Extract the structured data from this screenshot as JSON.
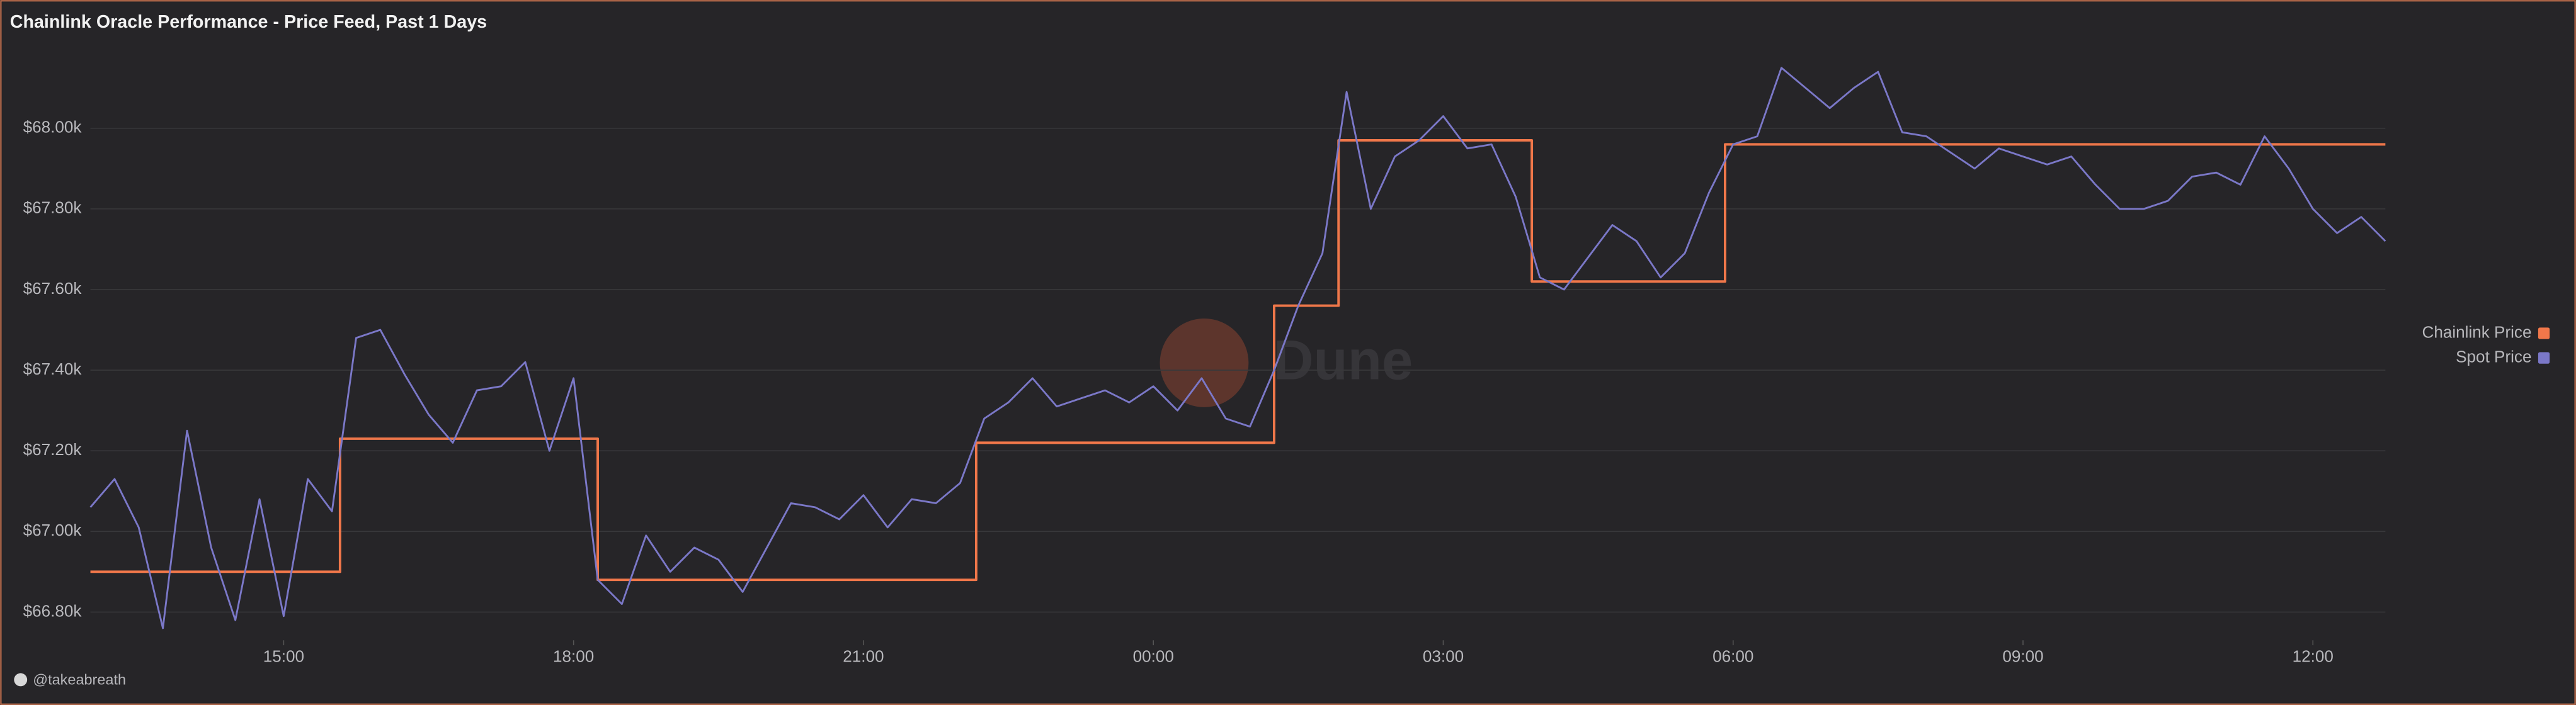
{
  "chart_data": {
    "type": "line",
    "title": "Chainlink Oracle Performance - Price Feed, Past 1 Days",
    "watermark": "Dune",
    "credit": "@takeabreath",
    "xlim": [
      "13:00",
      "12:45"
    ],
    "xticks": [
      "15:00",
      "18:00",
      "21:00",
      "00:00",
      "03:00",
      "06:00",
      "09:00",
      "12:00"
    ],
    "ylim": [
      66730,
      68200
    ],
    "yticks": [
      {
        "value": 66800,
        "label": "$66.80k"
      },
      {
        "value": 67000,
        "label": "$67.00k"
      },
      {
        "value": 67200,
        "label": "$67.20k"
      },
      {
        "value": 67400,
        "label": "$67.40k"
      },
      {
        "value": 67600,
        "label": "$67.60k"
      },
      {
        "value": 67800,
        "label": "$67.80k"
      },
      {
        "value": 68000,
        "label": "$68.00k"
      }
    ],
    "grid": true,
    "legend": "right",
    "series": [
      {
        "name": "Chainlink Price",
        "color": "#f0774a",
        "step": true,
        "x": [
          "13:00",
          "15:35",
          "18:15",
          "22:10",
          "01:15",
          "01:55",
          "03:55",
          "05:55",
          "12:45"
        ],
        "values": [
          66900,
          67230,
          66880,
          67220,
          67560,
          67970,
          67620,
          67960,
          67960
        ]
      },
      {
        "name": "Spot Price",
        "color": "#7b78c8",
        "x": [
          "13:00",
          "13:15",
          "13:30",
          "13:45",
          "14:00",
          "14:15",
          "14:30",
          "14:45",
          "15:00",
          "15:15",
          "15:30",
          "15:45",
          "16:00",
          "16:15",
          "16:30",
          "16:45",
          "17:00",
          "17:15",
          "17:30",
          "17:45",
          "18:00",
          "18:15",
          "18:30",
          "18:45",
          "19:00",
          "19:15",
          "19:30",
          "19:45",
          "20:00",
          "20:15",
          "20:30",
          "20:45",
          "21:00",
          "21:15",
          "21:30",
          "21:45",
          "22:00",
          "22:15",
          "22:30",
          "22:45",
          "23:00",
          "23:15",
          "23:30",
          "23:45",
          "00:00",
          "00:15",
          "00:30",
          "00:45",
          "01:00",
          "01:15",
          "01:30",
          "01:45",
          "02:00",
          "02:15",
          "02:30",
          "02:45",
          "03:00",
          "03:15",
          "03:30",
          "03:45",
          "04:00",
          "04:15",
          "04:30",
          "04:45",
          "05:00",
          "05:15",
          "05:30",
          "05:45",
          "06:00",
          "06:15",
          "06:30",
          "06:45",
          "07:00",
          "07:15",
          "07:30",
          "07:45",
          "08:00",
          "08:15",
          "08:30",
          "08:45",
          "09:00",
          "09:15",
          "09:30",
          "09:45",
          "10:00",
          "10:15",
          "10:30",
          "10:45",
          "11:00",
          "11:15",
          "11:30",
          "11:45",
          "12:00",
          "12:15",
          "12:30",
          "12:45"
        ],
        "values": [
          67060,
          67130,
          67010,
          66760,
          67250,
          66960,
          66780,
          67080,
          66790,
          67130,
          67050,
          67480,
          67500,
          67390,
          67290,
          67220,
          67350,
          67360,
          67420,
          67200,
          67380,
          66880,
          66820,
          66990,
          66900,
          66960,
          66930,
          66850,
          66960,
          67070,
          67060,
          67030,
          67090,
          67010,
          67080,
          67070,
          67120,
          67280,
          67320,
          67380,
          67310,
          67330,
          67350,
          67320,
          67360,
          67300,
          67380,
          67280,
          67260,
          67400,
          67560,
          67690,
          68090,
          67800,
          67930,
          67970,
          68030,
          67950,
          67960,
          67830,
          67630,
          67600,
          67680,
          67760,
          67720,
          67630,
          67690,
          67840,
          67960,
          67980,
          68150,
          68100,
          68050,
          68100,
          68140,
          67990,
          67980,
          67940,
          67900,
          67950,
          67930,
          67910,
          67930,
          67860,
          67800,
          67800,
          67820,
          67880,
          67890,
          67860,
          67980,
          67900,
          67800,
          67740,
          67780,
          67720
        ]
      }
    ]
  }
}
